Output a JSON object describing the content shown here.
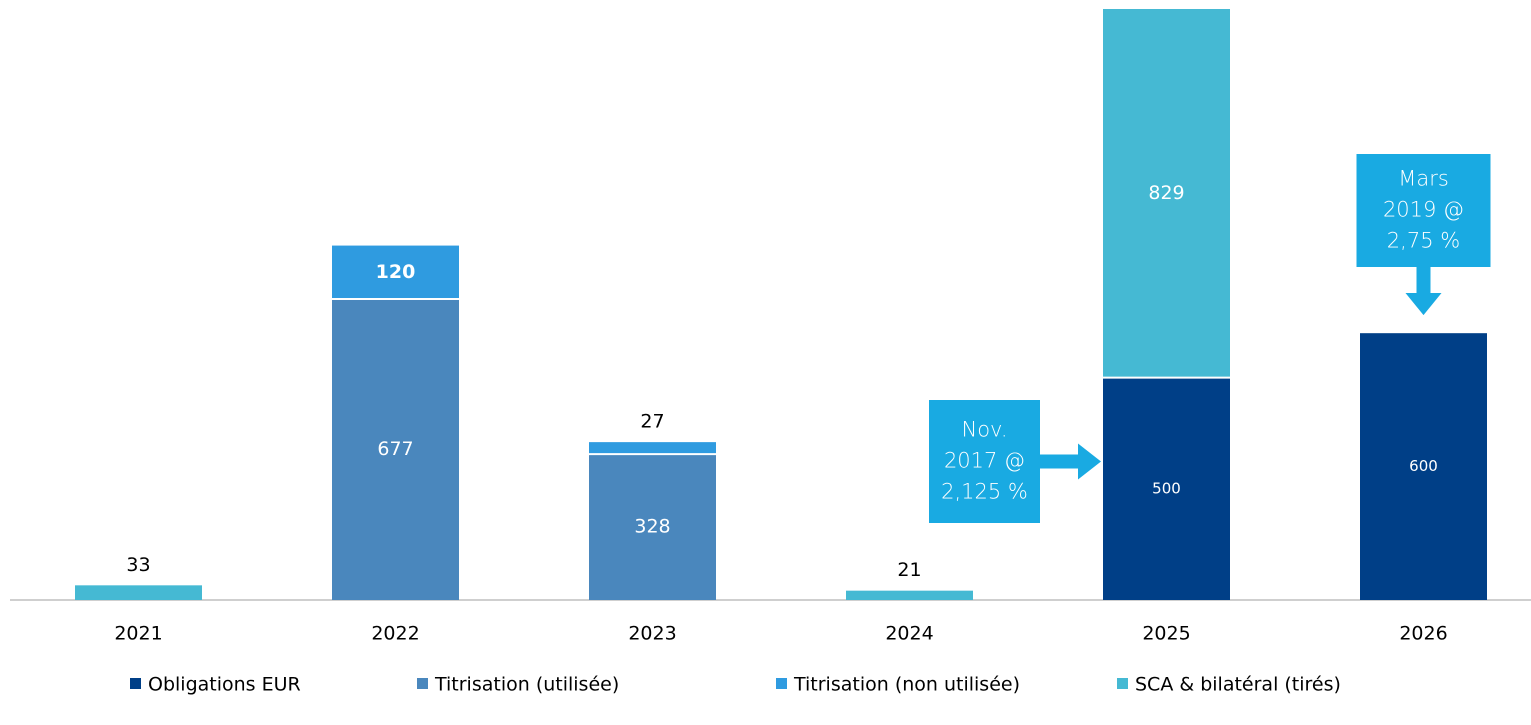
{
  "chart_data": {
    "type": "stacked_bar",
    "categories": [
      "2021",
      "2022",
      "2023",
      "2024",
      "2025",
      "2026"
    ],
    "series": [
      {
        "name": "Obligations EUR",
        "color": "#003f87",
        "values": [
          null,
          null,
          null,
          null,
          500,
          600
        ]
      },
      {
        "name": "Titrisation (utilisée)",
        "color": "#4a87bd",
        "values": [
          null,
          677,
          328,
          null,
          null,
          null
        ]
      },
      {
        "name": "Titrisation (non utilisée)",
        "color": "#2f9be0",
        "values": [
          null,
          120,
          27,
          null,
          null,
          null
        ]
      },
      {
        "name": "SCA & bilatéral (tirés)",
        "color": "#45b9d3",
        "values": [
          33,
          null,
          null,
          21,
          829,
          null
        ]
      }
    ],
    "annotations": [
      {
        "lines": [
          "Nov.",
          "2017 @",
          "2,125 %"
        ],
        "category": 4
      },
      {
        "lines": [
          "Mars",
          "2019 @",
          "2,75 %"
        ],
        "category": 5
      }
    ],
    "legend": "bottom"
  }
}
